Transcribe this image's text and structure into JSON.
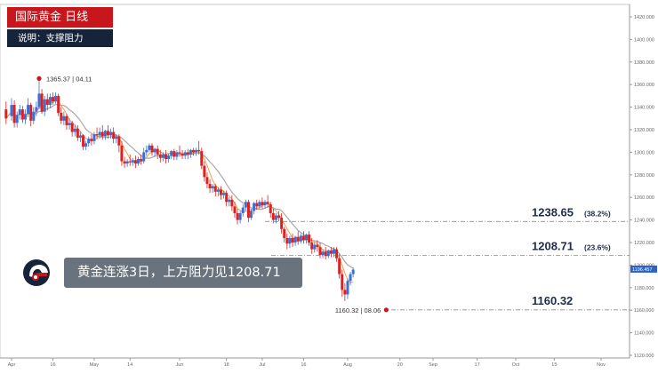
{
  "header": {
    "title": "国际黄金  日线",
    "subtitle": "说明：支撑阻力"
  },
  "caption": "黄金连涨3日，上方阻力见1208.71",
  "colors": {
    "title_bg": "#c8161d",
    "subtitle_bg": "#16243a",
    "up_candle": "#3a6fd8",
    "down_candle": "#e0201e",
    "ma_fast": "#f2a04a",
    "ma_slow": "#a9a9a9",
    "caption_bg": "#69737e",
    "price_tag": "#2a62c9"
  },
  "chart_data": {
    "type": "candlestick",
    "y_axis": {
      "min": 1120,
      "max": 1420,
      "ticks": [
        "1420.000",
        "1400.000",
        "1380.000",
        "1360.000",
        "1340.000",
        "1320.000",
        "1300.000",
        "1280.000",
        "1260.000",
        "1240.000",
        "1220.000",
        "1200.000",
        "1180.000",
        "1160.000",
        "1140.000",
        "1120.000"
      ],
      "position": "right"
    },
    "x_axis": {
      "ticks": [
        {
          "label": "Apr",
          "day": 0
        },
        {
          "label": "16",
          "day": 15
        },
        {
          "label": "May",
          "day": 30
        },
        {
          "label": "14",
          "day": 43
        },
        {
          "label": "Jun",
          "day": 61
        },
        {
          "label": "18",
          "day": 78
        },
        {
          "label": "Jul",
          "day": 91
        },
        {
          "label": "16",
          "day": 106
        },
        {
          "label": "Aug",
          "day": 122
        },
        {
          "label": "20",
          "day": 141
        },
        {
          "label": "Sep",
          "day": 153
        },
        {
          "label": "17",
          "day": 169
        },
        {
          "label": "Oct",
          "day": 183
        },
        {
          "label": "15",
          "day": 197
        },
        {
          "label": "Nov",
          "day": 214
        }
      ]
    },
    "current_price_label": "1196.457",
    "current_price": 1196.457,
    "levels": [
      {
        "label": "1238.65",
        "pct": "(38.2%)",
        "value": 1238.65
      },
      {
        "label": "1208.71",
        "pct": "(23.6%)",
        "value": 1208.71
      },
      {
        "label": "1160.32",
        "pct": "",
        "value": 1160.32
      }
    ],
    "annotations": [
      {
        "label": "1365.37 | 04.11",
        "value": 1365.37,
        "day": 10
      },
      {
        "label": "1160.32 | 08.06",
        "value": 1160.32,
        "day": 136
      }
    ],
    "moving_averages": [
      "fast",
      "slow"
    ],
    "candles": [
      {
        "day": -2,
        "o": 1338,
        "h": 1345,
        "c": 1330,
        "l": 1325
      },
      {
        "day": 0,
        "o": 1332,
        "h": 1348,
        "c": 1342,
        "l": 1328
      },
      {
        "day": 1,
        "o": 1342,
        "h": 1346,
        "c": 1326,
        "l": 1322
      },
      {
        "day": 2,
        "o": 1326,
        "h": 1336,
        "c": 1333,
        "l": 1322
      },
      {
        "day": 3,
        "o": 1333,
        "h": 1342,
        "c": 1338,
        "l": 1329
      },
      {
        "day": 4,
        "o": 1338,
        "h": 1341,
        "c": 1329,
        "l": 1326
      },
      {
        "day": 5,
        "o": 1329,
        "h": 1338,
        "c": 1334,
        "l": 1325
      },
      {
        "day": 6,
        "o": 1334,
        "h": 1348,
        "c": 1342,
        "l": 1331
      },
      {
        "day": 7,
        "o": 1342,
        "h": 1344,
        "c": 1328,
        "l": 1323
      },
      {
        "day": 8,
        "o": 1328,
        "h": 1340,
        "c": 1336,
        "l": 1325
      },
      {
        "day": 9,
        "o": 1336,
        "h": 1345,
        "c": 1340,
        "l": 1332
      },
      {
        "day": 10,
        "o": 1340,
        "h": 1365,
        "c": 1352,
        "l": 1338
      },
      {
        "day": 11,
        "o": 1352,
        "h": 1356,
        "c": 1336,
        "l": 1334
      },
      {
        "day": 12,
        "o": 1336,
        "h": 1350,
        "c": 1347,
        "l": 1332
      },
      {
        "day": 13,
        "o": 1347,
        "h": 1352,
        "c": 1342,
        "l": 1337
      },
      {
        "day": 14,
        "o": 1342,
        "h": 1352,
        "c": 1349,
        "l": 1339
      },
      {
        "day": 15,
        "o": 1349,
        "h": 1353,
        "c": 1345,
        "l": 1342
      },
      {
        "day": 16,
        "o": 1345,
        "h": 1353,
        "c": 1350,
        "l": 1343
      },
      {
        "day": 17,
        "o": 1350,
        "h": 1352,
        "c": 1335,
        "l": 1332
      },
      {
        "day": 18,
        "o": 1335,
        "h": 1340,
        "c": 1328,
        "l": 1325
      },
      {
        "day": 19,
        "o": 1328,
        "h": 1336,
        "c": 1332,
        "l": 1324
      },
      {
        "day": 20,
        "o": 1332,
        "h": 1334,
        "c": 1324,
        "l": 1320
      },
      {
        "day": 21,
        "o": 1324,
        "h": 1330,
        "c": 1326,
        "l": 1320
      },
      {
        "day": 22,
        "o": 1326,
        "h": 1328,
        "c": 1318,
        "l": 1314
      },
      {
        "day": 23,
        "o": 1318,
        "h": 1324,
        "c": 1321,
        "l": 1314
      },
      {
        "day": 24,
        "o": 1321,
        "h": 1324,
        "c": 1313,
        "l": 1310
      },
      {
        "day": 25,
        "o": 1313,
        "h": 1318,
        "c": 1315,
        "l": 1309
      },
      {
        "day": 26,
        "o": 1315,
        "h": 1316,
        "c": 1305,
        "l": 1302
      },
      {
        "day": 27,
        "o": 1305,
        "h": 1310,
        "c": 1308,
        "l": 1302
      },
      {
        "day": 28,
        "o": 1308,
        "h": 1314,
        "c": 1312,
        "l": 1305
      },
      {
        "day": 29,
        "o": 1312,
        "h": 1316,
        "c": 1310,
        "l": 1306
      },
      {
        "day": 30,
        "o": 1310,
        "h": 1318,
        "c": 1316,
        "l": 1307
      },
      {
        "day": 31,
        "o": 1316,
        "h": 1322,
        "c": 1315,
        "l": 1312
      },
      {
        "day": 32,
        "o": 1315,
        "h": 1322,
        "c": 1318,
        "l": 1312
      },
      {
        "day": 33,
        "o": 1318,
        "h": 1324,
        "c": 1314,
        "l": 1311
      },
      {
        "day": 34,
        "o": 1314,
        "h": 1320,
        "c": 1319,
        "l": 1311
      },
      {
        "day": 35,
        "o": 1319,
        "h": 1324,
        "c": 1315,
        "l": 1312
      },
      {
        "day": 36,
        "o": 1315,
        "h": 1321,
        "c": 1318,
        "l": 1312
      },
      {
        "day": 37,
        "o": 1318,
        "h": 1322,
        "c": 1312,
        "l": 1308
      },
      {
        "day": 38,
        "o": 1312,
        "h": 1316,
        "c": 1314,
        "l": 1308
      },
      {
        "day": 39,
        "o": 1314,
        "h": 1316,
        "c": 1306,
        "l": 1300
      },
      {
        "day": 40,
        "o": 1306,
        "h": 1310,
        "c": 1292,
        "l": 1288
      },
      {
        "day": 41,
        "o": 1292,
        "h": 1296,
        "c": 1290,
        "l": 1286
      },
      {
        "day": 42,
        "o": 1290,
        "h": 1294,
        "c": 1292,
        "l": 1287
      },
      {
        "day": 43,
        "o": 1292,
        "h": 1298,
        "c": 1291,
        "l": 1288
      },
      {
        "day": 44,
        "o": 1291,
        "h": 1295,
        "c": 1293,
        "l": 1288
      },
      {
        "day": 45,
        "o": 1293,
        "h": 1297,
        "c": 1290,
        "l": 1286
      },
      {
        "day": 46,
        "o": 1290,
        "h": 1296,
        "c": 1294,
        "l": 1288
      },
      {
        "day": 47,
        "o": 1294,
        "h": 1298,
        "c": 1292,
        "l": 1289
      },
      {
        "day": 48,
        "o": 1292,
        "h": 1304,
        "c": 1300,
        "l": 1290
      },
      {
        "day": 49,
        "o": 1300,
        "h": 1306,
        "c": 1302,
        "l": 1297
      },
      {
        "day": 50,
        "o": 1302,
        "h": 1308,
        "c": 1306,
        "l": 1300
      },
      {
        "day": 51,
        "o": 1306,
        "h": 1308,
        "c": 1300,
        "l": 1297
      },
      {
        "day": 52,
        "o": 1300,
        "h": 1304,
        "c": 1303,
        "l": 1296
      },
      {
        "day": 53,
        "o": 1303,
        "h": 1306,
        "c": 1298,
        "l": 1294
      },
      {
        "day": 54,
        "o": 1298,
        "h": 1302,
        "c": 1295,
        "l": 1291
      },
      {
        "day": 55,
        "o": 1295,
        "h": 1300,
        "c": 1298,
        "l": 1292
      },
      {
        "day": 56,
        "o": 1298,
        "h": 1302,
        "c": 1294,
        "l": 1290
      },
      {
        "day": 57,
        "o": 1294,
        "h": 1299,
        "c": 1297,
        "l": 1291
      },
      {
        "day": 58,
        "o": 1297,
        "h": 1302,
        "c": 1301,
        "l": 1294
      },
      {
        "day": 59,
        "o": 1301,
        "h": 1303,
        "c": 1296,
        "l": 1293
      },
      {
        "day": 60,
        "o": 1296,
        "h": 1302,
        "c": 1300,
        "l": 1293
      },
      {
        "day": 61,
        "o": 1300,
        "h": 1306,
        "c": 1299,
        "l": 1296
      },
      {
        "day": 62,
        "o": 1299,
        "h": 1302,
        "c": 1297,
        "l": 1294
      },
      {
        "day": 63,
        "o": 1297,
        "h": 1302,
        "c": 1300,
        "l": 1294
      },
      {
        "day": 64,
        "o": 1300,
        "h": 1303,
        "c": 1298,
        "l": 1294
      },
      {
        "day": 65,
        "o": 1298,
        "h": 1303,
        "c": 1302,
        "l": 1295
      },
      {
        "day": 66,
        "o": 1302,
        "h": 1304,
        "c": 1300,
        "l": 1297
      },
      {
        "day": 67,
        "o": 1300,
        "h": 1304,
        "c": 1302,
        "l": 1297
      },
      {
        "day": 68,
        "o": 1302,
        "h": 1310,
        "c": 1301,
        "l": 1298
      },
      {
        "day": 69,
        "o": 1301,
        "h": 1304,
        "c": 1288,
        "l": 1285
      },
      {
        "day": 70,
        "o": 1288,
        "h": 1292,
        "c": 1278,
        "l": 1274
      },
      {
        "day": 71,
        "o": 1278,
        "h": 1282,
        "c": 1272,
        "l": 1268
      },
      {
        "day": 72,
        "o": 1272,
        "h": 1276,
        "c": 1268,
        "l": 1264
      },
      {
        "day": 73,
        "o": 1268,
        "h": 1272,
        "c": 1270,
        "l": 1264
      },
      {
        "day": 74,
        "o": 1270,
        "h": 1272,
        "c": 1265,
        "l": 1261
      },
      {
        "day": 75,
        "o": 1265,
        "h": 1269,
        "c": 1267,
        "l": 1261
      },
      {
        "day": 76,
        "o": 1267,
        "h": 1270,
        "c": 1262,
        "l": 1258
      },
      {
        "day": 77,
        "o": 1262,
        "h": 1266,
        "c": 1264,
        "l": 1259
      },
      {
        "day": 78,
        "o": 1264,
        "h": 1266,
        "c": 1256,
        "l": 1252
      },
      {
        "day": 79,
        "o": 1256,
        "h": 1260,
        "c": 1258,
        "l": 1252
      },
      {
        "day": 80,
        "o": 1258,
        "h": 1262,
        "c": 1252,
        "l": 1248
      },
      {
        "day": 81,
        "o": 1252,
        "h": 1256,
        "c": 1246,
        "l": 1242
      },
      {
        "day": 82,
        "o": 1246,
        "h": 1250,
        "c": 1240,
        "l": 1236
      },
      {
        "day": 83,
        "o": 1240,
        "h": 1248,
        "c": 1246,
        "l": 1237
      },
      {
        "day": 84,
        "o": 1246,
        "h": 1254,
        "c": 1251,
        "l": 1243
      },
      {
        "day": 85,
        "o": 1251,
        "h": 1258,
        "c": 1256,
        "l": 1248
      },
      {
        "day": 86,
        "o": 1256,
        "h": 1258,
        "c": 1242,
        "l": 1238
      },
      {
        "day": 87,
        "o": 1242,
        "h": 1250,
        "c": 1248,
        "l": 1240
      },
      {
        "day": 88,
        "o": 1248,
        "h": 1256,
        "c": 1255,
        "l": 1245
      },
      {
        "day": 89,
        "o": 1255,
        "h": 1258,
        "c": 1252,
        "l": 1249
      },
      {
        "day": 90,
        "o": 1252,
        "h": 1258,
        "c": 1256,
        "l": 1250
      },
      {
        "day": 91,
        "o": 1256,
        "h": 1260,
        "c": 1253,
        "l": 1250
      },
      {
        "day": 92,
        "o": 1253,
        "h": 1258,
        "c": 1256,
        "l": 1250
      },
      {
        "day": 93,
        "o": 1256,
        "h": 1262,
        "c": 1254,
        "l": 1251
      },
      {
        "day": 94,
        "o": 1254,
        "h": 1256,
        "c": 1246,
        "l": 1242
      },
      {
        "day": 95,
        "o": 1246,
        "h": 1250,
        "c": 1240,
        "l": 1237
      },
      {
        "day": 96,
        "o": 1240,
        "h": 1246,
        "c": 1244,
        "l": 1237
      },
      {
        "day": 97,
        "o": 1244,
        "h": 1248,
        "c": 1242,
        "l": 1239
      },
      {
        "day": 98,
        "o": 1242,
        "h": 1246,
        "c": 1232,
        "l": 1228
      },
      {
        "day": 99,
        "o": 1232,
        "h": 1234,
        "c": 1224,
        "l": 1220
      },
      {
        "day": 100,
        "o": 1224,
        "h": 1228,
        "c": 1219,
        "l": 1214
      },
      {
        "day": 101,
        "o": 1219,
        "h": 1226,
        "c": 1224,
        "l": 1215
      },
      {
        "day": 102,
        "o": 1224,
        "h": 1228,
        "c": 1220,
        "l": 1216
      },
      {
        "day": 103,
        "o": 1220,
        "h": 1226,
        "c": 1225,
        "l": 1217
      },
      {
        "day": 104,
        "o": 1225,
        "h": 1230,
        "c": 1221,
        "l": 1218
      },
      {
        "day": 105,
        "o": 1221,
        "h": 1228,
        "c": 1226,
        "l": 1219
      },
      {
        "day": 106,
        "o": 1226,
        "h": 1230,
        "c": 1222,
        "l": 1219
      },
      {
        "day": 107,
        "o": 1222,
        "h": 1228,
        "c": 1227,
        "l": 1219
      },
      {
        "day": 108,
        "o": 1227,
        "h": 1230,
        "c": 1220,
        "l": 1217
      },
      {
        "day": 109,
        "o": 1220,
        "h": 1224,
        "c": 1214,
        "l": 1210
      },
      {
        "day": 110,
        "o": 1214,
        "h": 1220,
        "c": 1218,
        "l": 1211
      },
      {
        "day": 111,
        "o": 1218,
        "h": 1222,
        "c": 1216,
        "l": 1212
      },
      {
        "day": 112,
        "o": 1216,
        "h": 1220,
        "c": 1209,
        "l": 1206
      },
      {
        "day": 113,
        "o": 1209,
        "h": 1214,
        "c": 1212,
        "l": 1206
      },
      {
        "day": 114,
        "o": 1212,
        "h": 1216,
        "c": 1208,
        "l": 1205
      },
      {
        "day": 115,
        "o": 1208,
        "h": 1214,
        "c": 1213,
        "l": 1206
      },
      {
        "day": 116,
        "o": 1213,
        "h": 1216,
        "c": 1210,
        "l": 1207
      },
      {
        "day": 117,
        "o": 1210,
        "h": 1216,
        "c": 1214,
        "l": 1207
      },
      {
        "day": 118,
        "o": 1214,
        "h": 1216,
        "c": 1206,
        "l": 1203
      },
      {
        "day": 119,
        "o": 1206,
        "h": 1210,
        "c": 1192,
        "l": 1188
      },
      {
        "day": 120,
        "o": 1192,
        "h": 1196,
        "c": 1178,
        "l": 1172
      },
      {
        "day": 121,
        "o": 1178,
        "h": 1184,
        "c": 1174,
        "l": 1168
      },
      {
        "day": 122,
        "o": 1174,
        "h": 1188,
        "c": 1186,
        "l": 1170
      },
      {
        "day": 123,
        "o": 1186,
        "h": 1194,
        "c": 1192,
        "l": 1182
      },
      {
        "day": 124,
        "o": 1192,
        "h": 1198,
        "c": 1196,
        "l": 1189
      }
    ]
  }
}
